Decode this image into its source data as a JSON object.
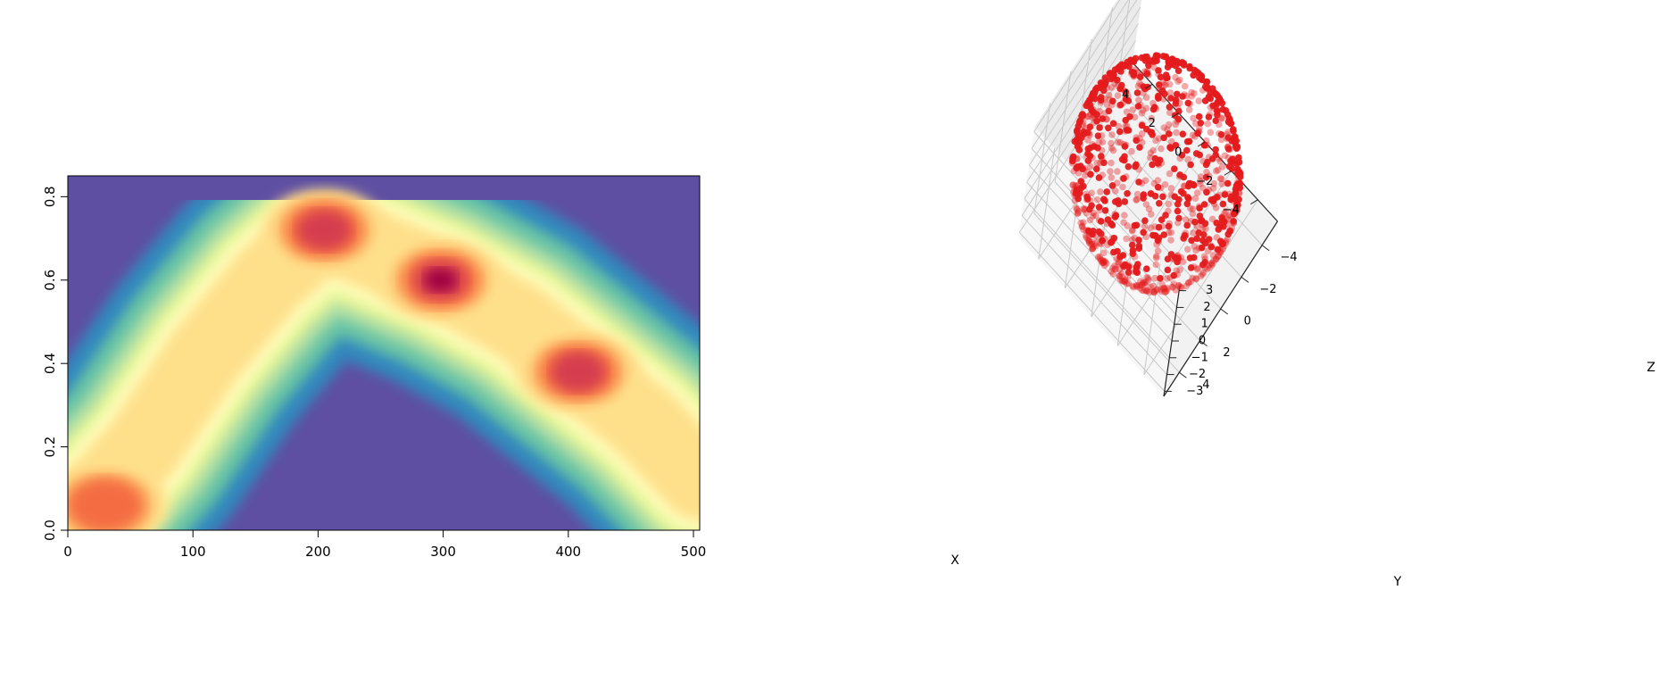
{
  "chart_data": [
    {
      "type": "heatmap",
      "title": "",
      "xlabel": "",
      "ylabel": "",
      "xlim": [
        0,
        505
      ],
      "ylim": [
        0,
        0.85
      ],
      "x_ticks": [
        "0",
        "100",
        "200",
        "300",
        "400",
        "500"
      ],
      "y_ticks": [
        "0.0",
        "0.2",
        "0.4",
        "0.6",
        "0.8"
      ],
      "colormap": "Spectral (reversed)",
      "colormap_stops": [
        "#5e4fa2",
        "#3288bd",
        "#66c2a5",
        "#abdda4",
        "#e6f598",
        "#ffffbf",
        "#fee08b",
        "#fdae61",
        "#f46d43",
        "#d53e4f",
        "#9e0142"
      ],
      "ridge_path": [
        [
          0,
          0.0
        ],
        [
          60,
          0.2
        ],
        [
          110,
          0.42
        ],
        [
          160,
          0.6
        ],
        [
          205,
          0.72
        ],
        [
          300,
          0.6
        ],
        [
          360,
          0.5
        ],
        [
          410,
          0.38
        ],
        [
          460,
          0.26
        ],
        [
          505,
          0.12
        ]
      ],
      "density_peaks": [
        {
          "x": 298,
          "y": 0.6,
          "level": 1.0
        },
        {
          "x": 205,
          "y": 0.72,
          "level": 0.83
        },
        {
          "x": 408,
          "y": 0.38,
          "level": 0.8
        },
        {
          "x": 30,
          "y": 0.06,
          "level": 0.62
        }
      ]
    },
    {
      "type": "scatter",
      "subtype": "3d",
      "title": "",
      "xlabel": "X",
      "ylabel": "Y",
      "zlabel": "Z",
      "x_ticks": [
        "−4",
        "−2",
        "0",
        "2",
        "4"
      ],
      "y_ticks": [
        "−4",
        "−2",
        "0",
        "2",
        "4"
      ],
      "z_ticks": [
        "−3",
        "−2",
        "−1",
        "0",
        "1",
        "2",
        "3"
      ],
      "xlim": [
        -5.5,
        5.5
      ],
      "ylim": [
        -5.5,
        5.5
      ],
      "zlim": [
        -3.3,
        3.3
      ],
      "point_color": "#e41a1c",
      "point_count": 1000,
      "shape": "points on an ellipsoid surface, radius ≈5 in X and Y, ≈3 in Z",
      "view": {
        "elevation_deg": 50,
        "azimuth_deg": -45
      }
    }
  ]
}
